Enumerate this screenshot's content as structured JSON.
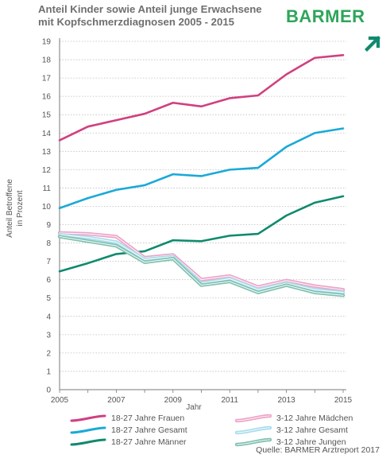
{
  "header": {
    "title_line1": "Anteil Kinder sowie Anteil junge Erwachsene",
    "title_line2": "mit Kopfschmerzdiagnosen 2005 - 2015"
  },
  "logo": {
    "text": "BARMER",
    "color": "#2ea55a",
    "icon": "diagonal-arrow-icon"
  },
  "chart_data": {
    "type": "line",
    "title": "Anteil Kinder sowie Anteil junge Erwachsene mit Kopfschmerzdiagnosen 2005 - 2015",
    "xlabel": "Jahr",
    "ylabel_line1": "Anteil Betroffene",
    "ylabel_line2": "in Prozent",
    "x": [
      2005,
      2006,
      2007,
      2008,
      2009,
      2010,
      2011,
      2012,
      2013,
      2014,
      2015
    ],
    "x_tick_labels": [
      "2005",
      "2007",
      "2009",
      "2011",
      "2013",
      "2015"
    ],
    "xlim": [
      2005,
      2015
    ],
    "ylim": [
      0,
      19
    ],
    "y_ticks": [
      0,
      1,
      2,
      3,
      4,
      5,
      6,
      7,
      8,
      9,
      10,
      11,
      12,
      13,
      14,
      15,
      16,
      17,
      18,
      19
    ],
    "grid": "horizontal dotted",
    "legend_position": "bottom",
    "series": [
      {
        "name": "18-27 Jahre Frauen",
        "color": "#d0407f",
        "style": "solid",
        "values": [
          13.6,
          14.35,
          14.7,
          15.05,
          15.65,
          15.45,
          15.9,
          16.05,
          17.2,
          18.1,
          18.25
        ]
      },
      {
        "name": "18-27 Jahre Gesamt",
        "color": "#1aa9d8",
        "style": "solid",
        "values": [
          9.9,
          10.45,
          10.9,
          11.15,
          11.75,
          11.65,
          12.0,
          12.1,
          13.25,
          14.0,
          14.25
        ]
      },
      {
        "name": "18-27 Jahre Männer",
        "color": "#0f8a6d",
        "style": "solid",
        "values": [
          6.45,
          6.9,
          7.4,
          7.55,
          8.15,
          8.1,
          8.4,
          8.5,
          9.5,
          10.2,
          10.55
        ]
      },
      {
        "name": "3-12 Jahre Mädchen",
        "color": "#eca3c6",
        "style": "double",
        "values": [
          8.55,
          8.5,
          8.35,
          7.2,
          7.35,
          6.0,
          6.2,
          5.6,
          5.95,
          5.65,
          5.45
        ]
      },
      {
        "name": "3-12 Jahre Gesamt",
        "color": "#a7dced",
        "style": "double",
        "values": [
          8.45,
          8.3,
          8.05,
          7.1,
          7.25,
          5.8,
          6.05,
          5.45,
          5.8,
          5.45,
          5.3
        ]
      },
      {
        "name": "3-12 Jahre Jungen",
        "color": "#7fc0b0",
        "style": "double",
        "values": [
          8.35,
          8.1,
          7.85,
          6.95,
          7.15,
          5.7,
          5.9,
          5.3,
          5.7,
          5.3,
          5.15
        ]
      }
    ]
  },
  "source": "Quelle: BARMER Arztreport 2017"
}
